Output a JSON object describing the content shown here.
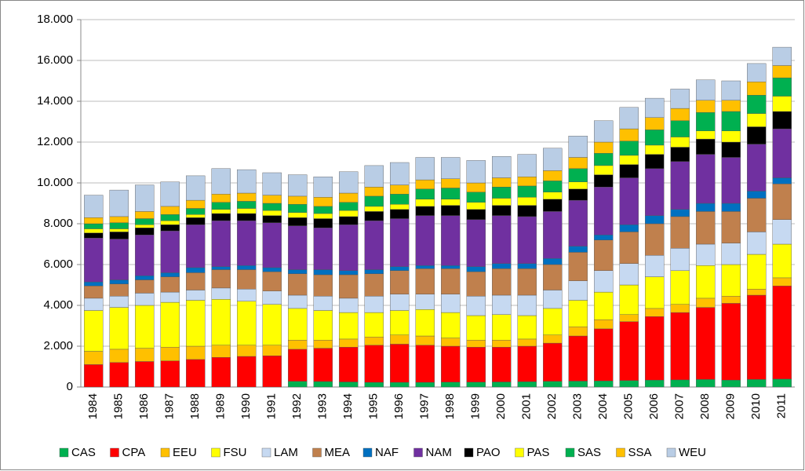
{
  "chart_data": {
    "type": "stacked_bar",
    "categories": [
      "1984",
      "1985",
      "1986",
      "1987",
      "1988",
      "1989",
      "1990",
      "1991",
      "1992",
      "1993",
      "1994",
      "1995",
      "1996",
      "1997",
      "1998",
      "1999",
      "2000",
      "2001",
      "2002",
      "2003",
      "2004",
      "2005",
      "2006",
      "2007",
      "2008",
      "2009",
      "2010",
      "2011"
    ],
    "series": [
      {
        "name": "CAS",
        "color": "#00b050",
        "values": [
          0,
          0,
          0,
          0,
          0,
          0,
          0,
          0,
          280,
          270,
          250,
          230,
          230,
          230,
          240,
          240,
          250,
          260,
          280,
          290,
          300,
          320,
          340,
          350,
          370,
          340,
          370,
          390
        ]
      },
      {
        "name": "CPA",
        "color": "#ff0000",
        "values": [
          1100,
          1200,
          1250,
          1280,
          1350,
          1450,
          1500,
          1530,
          1570,
          1630,
          1700,
          1820,
          1870,
          1820,
          1760,
          1710,
          1700,
          1740,
          1870,
          2210,
          2550,
          2880,
          3110,
          3300,
          3530,
          3760,
          4130,
          4560
        ]
      },
      {
        "name": "EEU",
        "color": "#ffc000",
        "values": [
          650,
          650,
          650,
          670,
          650,
          600,
          550,
          520,
          450,
          400,
          400,
          400,
          450,
          450,
          400,
          350,
          350,
          350,
          400,
          450,
          450,
          350,
          400,
          400,
          450,
          350,
          300,
          400
        ]
      },
      {
        "name": "FSU",
        "color": "#ffff00",
        "values": [
          2000,
          2050,
          2100,
          2200,
          2250,
          2250,
          2150,
          2000,
          1550,
          1450,
          1300,
          1200,
          1200,
          1300,
          1250,
          1200,
          1250,
          1150,
          1300,
          1300,
          1350,
          1450,
          1550,
          1650,
          1600,
          1550,
          1700,
          1650
        ]
      },
      {
        "name": "LAM",
        "color": "#c6d9f1",
        "values": [
          600,
          550,
          600,
          500,
          500,
          550,
          600,
          650,
          650,
          700,
          700,
          800,
          800,
          750,
          900,
          950,
          950,
          1000,
          900,
          950,
          1050,
          1050,
          1050,
          1100,
          1050,
          1050,
          1100,
          1200
        ]
      },
      {
        "name": "MEA",
        "color": "#c0804d",
        "values": [
          600,
          600,
          650,
          750,
          850,
          900,
          950,
          950,
          1050,
          1050,
          1150,
          1100,
          1150,
          1250,
          1250,
          1200,
          1300,
          1300,
          1250,
          1400,
          1500,
          1550,
          1550,
          1550,
          1600,
          1550,
          1650,
          1750
        ]
      },
      {
        "name": "NAF",
        "color": "#0070c0",
        "values": [
          200,
          200,
          200,
          200,
          250,
          150,
          200,
          200,
          200,
          250,
          200,
          200,
          200,
          150,
          150,
          250,
          250,
          250,
          300,
          300,
          250,
          350,
          400,
          350,
          400,
          400,
          350,
          300
        ]
      },
      {
        "name": "NAM",
        "color": "#7030a0",
        "values": [
          2150,
          2000,
          2000,
          2050,
          2100,
          2250,
          2200,
          2200,
          2150,
          2050,
          2250,
          2400,
          2350,
          2450,
          2450,
          2300,
          2350,
          2300,
          2300,
          2250,
          2350,
          2300,
          2300,
          2350,
          2400,
          2250,
          2300,
          2400
        ]
      },
      {
        "name": "PAO",
        "color": "#000000",
        "values": [
          250,
          350,
          350,
          300,
          350,
          350,
          350,
          350,
          400,
          450,
          400,
          450,
          450,
          450,
          500,
          500,
          500,
          550,
          600,
          550,
          600,
          650,
          700,
          700,
          750,
          750,
          850,
          850
        ]
      },
      {
        "name": "PAS",
        "color": "#ffff00",
        "values": [
          200,
          150,
          150,
          200,
          150,
          200,
          250,
          250,
          250,
          250,
          300,
          250,
          250,
          350,
          300,
          350,
          350,
          400,
          350,
          350,
          450,
          450,
          450,
          500,
          400,
          550,
          650,
          750
        ]
      },
      {
        "name": "SAS",
        "color": "#00b050",
        "values": [
          250,
          300,
          300,
          300,
          300,
          350,
          350,
          350,
          400,
          350,
          400,
          500,
          500,
          500,
          550,
          500,
          550,
          550,
          550,
          650,
          600,
          700,
          750,
          800,
          900,
          950,
          900,
          900
        ]
      },
      {
        "name": "SSA",
        "color": "#ffc000",
        "values": [
          300,
          300,
          350,
          400,
          400,
          400,
          400,
          400,
          400,
          450,
          450,
          450,
          450,
          450,
          450,
          450,
          450,
          450,
          500,
          550,
          550,
          600,
          600,
          600,
          600,
          550,
          650,
          600
        ]
      },
      {
        "name": "WEU",
        "color": "#b9cde5",
        "values": [
          1100,
          1300,
          1300,
          1200,
          1200,
          1250,
          1150,
          1100,
          1050,
          1000,
          1050,
          1050,
          1100,
          1100,
          1050,
          1100,
          1050,
          1100,
          1100,
          1050,
          1050,
          1050,
          950,
          950,
          1000,
          950,
          900,
          900
        ]
      }
    ],
    "ylim": [
      0,
      18000
    ],
    "yticks": [
      0,
      {
        "value": 2000,
        "label": "2.000"
      },
      {
        "value": 4000,
        "label": "4.000"
      },
      {
        "value": 6000,
        "label": "6.000"
      },
      {
        "value": 8000,
        "label": "8.000"
      },
      {
        "value": 10000,
        "label": "10.000"
      },
      {
        "value": 12000,
        "label": "12.000"
      },
      {
        "value": 14000,
        "label": "14.000"
      },
      {
        "value": 16000,
        "label": "16.000"
      },
      {
        "value": 18000,
        "label": "18.000"
      }
    ],
    "grid": true,
    "legend": "bottom"
  }
}
